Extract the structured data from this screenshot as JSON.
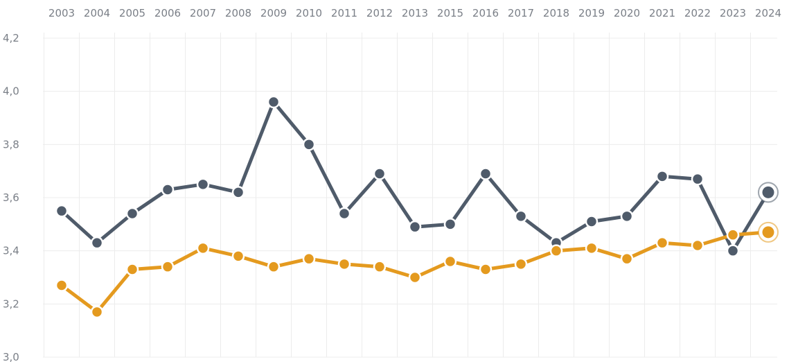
{
  "chart_data": {
    "type": "line",
    "categories": [
      "2003",
      "2004",
      "2005",
      "2006",
      "2007",
      "2008",
      "2009",
      "2010",
      "2011",
      "2012",
      "2013",
      "2015",
      "2016",
      "2017",
      "2018",
      "2019",
      "2020",
      "2021",
      "2022",
      "2023",
      "2024"
    ],
    "series": [
      {
        "color": "#4f5b6a",
        "values": [
          3.55,
          3.43,
          3.54,
          3.63,
          3.65,
          3.62,
          3.96,
          3.8,
          3.54,
          3.69,
          3.49,
          3.5,
          3.69,
          3.53,
          3.43,
          3.51,
          3.53,
          3.68,
          3.67,
          3.4,
          3.62
        ]
      },
      {
        "color": "#e49a1f",
        "values": [
          3.27,
          3.17,
          3.33,
          3.34,
          3.41,
          3.38,
          3.34,
          3.37,
          3.35,
          3.34,
          3.3,
          3.36,
          3.33,
          3.35,
          3.4,
          3.41,
          3.37,
          3.43,
          3.42,
          3.46,
          3.47
        ]
      }
    ],
    "ylim": [
      3.0,
      4.2
    ],
    "yticks": [
      "3,0",
      "3,2",
      "3,4",
      "3,6",
      "3,8",
      "4,0",
      "4,2"
    ],
    "x_axis_position": "top",
    "grid": true,
    "last_point_highlighted": true
  }
}
